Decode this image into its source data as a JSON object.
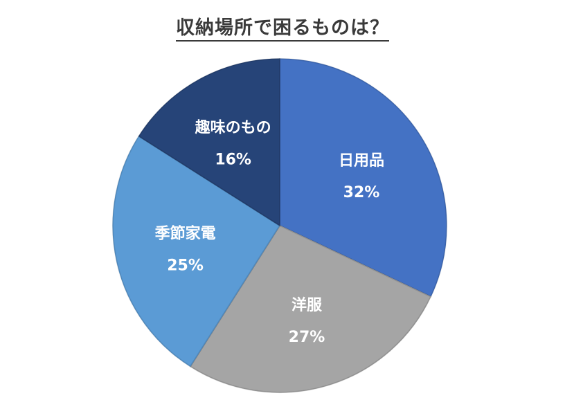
{
  "chart_data": {
    "type": "pie",
    "title": "収納場所で困るものは？",
    "slices": [
      {
        "label": "日用品",
        "value": 32,
        "value_label": "32%",
        "color": "#4472C4"
      },
      {
        "label": "洋服",
        "value": 27,
        "value_label": "27%",
        "color": "#A5A5A5"
      },
      {
        "label": "季節家電",
        "value": 25,
        "value_label": "25%",
        "color": "#5B9BD5"
      },
      {
        "label": "趣味のもの",
        "value": 16,
        "value_label": "16%",
        "color": "#264478"
      }
    ]
  }
}
